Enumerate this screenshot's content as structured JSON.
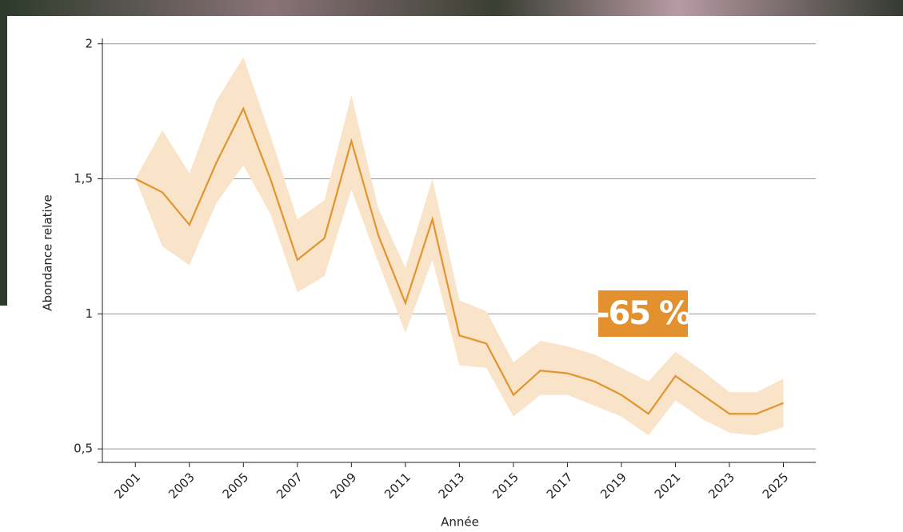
{
  "chart_data": {
    "type": "line",
    "x": [
      2001,
      2002,
      2003,
      2004,
      2005,
      2006,
      2007,
      2008,
      2009,
      2010,
      2011,
      2012,
      2013,
      2014,
      2015,
      2016,
      2017,
      2018,
      2019,
      2020,
      2021,
      2022,
      2023,
      2024,
      2025
    ],
    "line": {
      "color": "#e0952e",
      "values": [
        1.5,
        1.45,
        1.33,
        1.56,
        1.76,
        1.5,
        1.2,
        1.28,
        1.64,
        1.29,
        1.04,
        1.35,
        0.92,
        0.89,
        0.7,
        0.79,
        0.78,
        0.75,
        0.7,
        0.63,
        0.77,
        0.7,
        0.63,
        0.63,
        0.67
      ]
    },
    "band": {
      "color": "#f9e4ca",
      "upper": [
        1.5,
        1.68,
        1.52,
        1.79,
        1.95,
        1.66,
        1.35,
        1.42,
        1.81,
        1.39,
        1.17,
        1.5,
        1.05,
        1.01,
        0.82,
        0.9,
        0.88,
        0.85,
        0.8,
        0.75,
        0.86,
        0.79,
        0.71,
        0.71,
        0.76
      ],
      "lower": [
        1.5,
        1.25,
        1.18,
        1.41,
        1.55,
        1.37,
        1.08,
        1.14,
        1.46,
        1.19,
        0.93,
        1.2,
        0.81,
        0.8,
        0.62,
        0.7,
        0.7,
        0.66,
        0.62,
        0.55,
        0.68,
        0.61,
        0.56,
        0.55,
        0.58
      ]
    },
    "xlim": [
      1999.6,
      2026.2
    ],
    "xticks": [
      2001,
      2003,
      2005,
      2007,
      2009,
      2011,
      2013,
      2015,
      2017,
      2019,
      2021,
      2023,
      2025
    ],
    "ylim": [
      0.45,
      2.02
    ],
    "yticks": [
      {
        "value": 0.5,
        "label": "0,5"
      },
      1,
      {
        "value": 1.5,
        "label": "1,5"
      },
      2
    ],
    "grid": true,
    "xlabel": "Année",
    "ylabel": "Abondance relative",
    "annotation": "-65 %",
    "annotation_color": "#e3902e"
  }
}
